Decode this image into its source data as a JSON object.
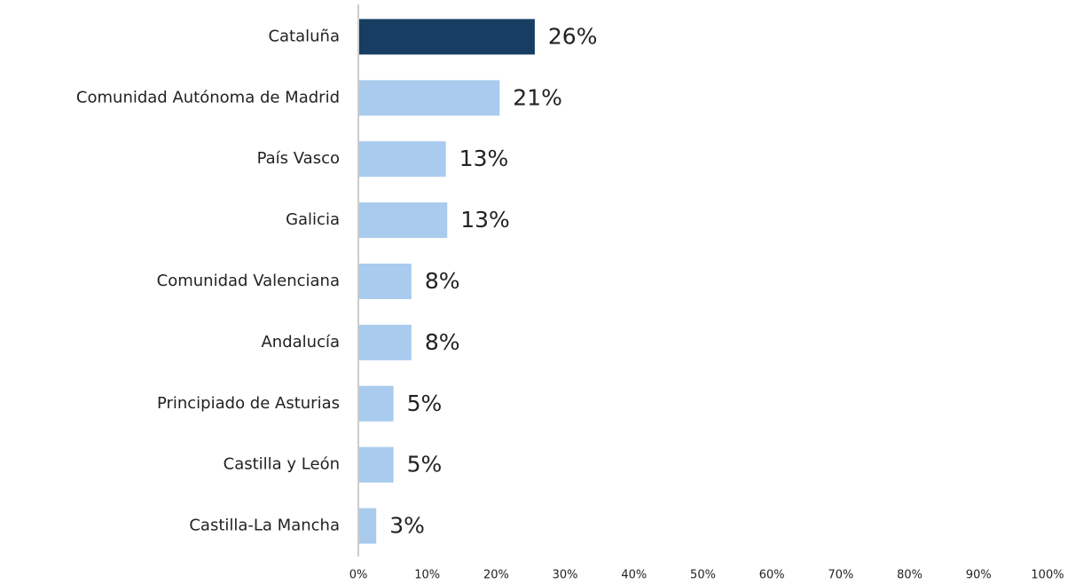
{
  "chart_data": {
    "type": "hbar",
    "categories": [
      "Cataluña",
      "Comunidad Autónoma de Madrid",
      "País Vasco",
      "Galicia",
      "Comunidad Valenciana",
      "Andalucía",
      "Principiado de Asturias",
      "Castilla y León",
      "Castilla-La Mancha"
    ],
    "values": [
      25.6,
      20.5,
      12.7,
      12.9,
      7.7,
      7.7,
      5.1,
      5.1,
      2.6
    ],
    "value_labels": [
      "26%",
      "21%",
      "13%",
      "13%",
      "8%",
      "8%",
      "5%",
      "5%",
      "3%"
    ],
    "colors": [
      "#173d63",
      "#a8cbee",
      "#a8cbee",
      "#a8cbee",
      "#a8cbee",
      "#a8cbee",
      "#a8cbee",
      "#a8cbee",
      "#a8cbee"
    ],
    "xlim": [
      0,
      100
    ],
    "xticks": [
      {
        "value": 0,
        "label": "0%"
      },
      {
        "value": 10,
        "label": "10%"
      },
      {
        "value": 20,
        "label": "20%"
      },
      {
        "value": 30,
        "label": "30%"
      },
      {
        "value": 40,
        "label": "40%"
      },
      {
        "value": 50,
        "label": "50%"
      },
      {
        "value": 60,
        "label": "60%"
      },
      {
        "value": 70,
        "label": "70%"
      },
      {
        "value": 80,
        "label": "80%"
      },
      {
        "value": 90,
        "label": "90%"
      },
      {
        "value": 100,
        "label": "100%"
      }
    ],
    "grid": false
  }
}
